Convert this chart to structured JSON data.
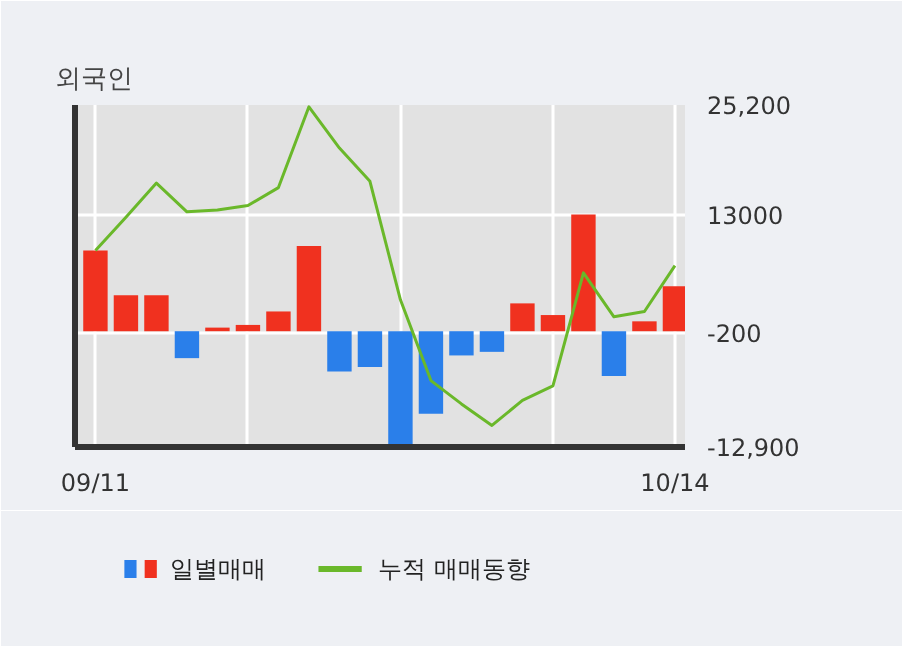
{
  "chart_data": {
    "type": "bar",
    "title": "외국인",
    "categories": [
      "09/11",
      null,
      null,
      null,
      null,
      null,
      null,
      null,
      null,
      null,
      null,
      null,
      null,
      null,
      null,
      null,
      null,
      null,
      null,
      "10/14"
    ],
    "series": [
      {
        "name": "일별매매",
        "colors": [
          "#f0311f",
          "#f0311f",
          "#f0311f",
          "#2a7fea",
          "#f0311f",
          "#f0311f",
          "#f0311f",
          "#f0311f",
          "#2a7fea",
          "#2a7fea",
          "#2a7fea",
          "#2a7fea",
          "#2a7fea",
          "#2a7fea",
          "#f0311f",
          "#f0311f",
          "#f0311f",
          "#2a7fea",
          "#f0311f",
          "#f0311f"
        ],
        "values": [
          9000,
          4000,
          4000,
          -3000,
          400,
          700,
          2200,
          9500,
          -4500,
          -4000,
          -12600,
          -9200,
          -2700,
          -2300,
          3100,
          1800,
          13000,
          -5000,
          1100,
          5000
        ]
      },
      {
        "name": "누적 매매동향",
        "type": "line",
        "color": "#6ab82a",
        "values": [
          9000,
          12700,
          16500,
          13300,
          13500,
          14000,
          16000,
          25000,
          20400,
          16700,
          3500,
          -5500,
          -8100,
          -10500,
          -7700,
          -6100,
          6500,
          1600,
          2200,
          7300
        ]
      }
    ],
    "ylim": [
      -12900,
      25200
    ],
    "yticks": [
      {
        "value": 25200,
        "label": "25,200"
      },
      13000,
      {
        "value": -200,
        "label": "-200"
      },
      {
        "value": -12900,
        "label": "-12,900"
      }
    ],
    "grid": true,
    "legend": "bottom",
    "line_style": "solid",
    "marker": "none"
  }
}
